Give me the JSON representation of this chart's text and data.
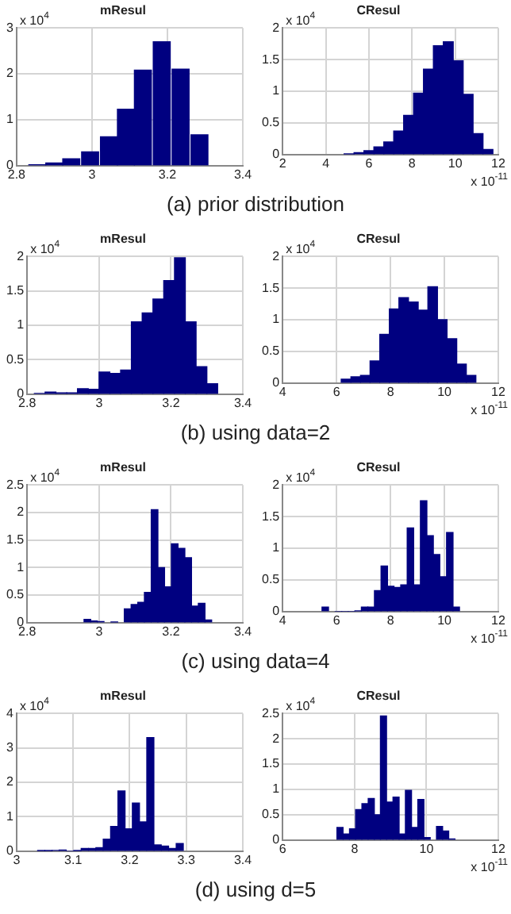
{
  "chart_data": [
    {
      "type": "histogram",
      "title": "mResul",
      "color": "#000080",
      "grid": true,
      "xlim": [
        2.8,
        3.4
      ],
      "xticks": [
        2.8,
        3,
        3.2,
        3.4
      ],
      "ylim": [
        0,
        3
      ],
      "yticks": [
        0,
        1,
        2,
        3
      ],
      "bins": [
        2.83,
        2.88,
        2.92,
        2.97,
        3.02,
        3.07,
        3.11,
        3.16,
        3.21,
        3.26,
        3.31
      ],
      "values": [
        0.02,
        0.06,
        0.15,
        0.3,
        0.63,
        1.23,
        2.08,
        2.7,
        2.1,
        0.67
      ],
      "annotations": [
        "x 10$^{4}$",
        "(a)  prior  distribution"
      ]
    },
    {
      "type": "histogram",
      "title": "CResul",
      "color": "#000080",
      "grid": true,
      "xlim": [
        2,
        12
      ],
      "xticks": [
        2,
        4,
        6,
        8,
        10,
        12
      ],
      "ylim": [
        0,
        2
      ],
      "yticks": [
        0,
        0.5,
        1,
        1.5,
        2
      ],
      "bins": [
        4.85,
        5.31,
        5.77,
        6.23,
        6.69,
        7.15,
        7.61,
        8.07,
        8.53,
        8.99,
        9.45,
        9.91,
        10.37,
        10.83,
        11.29,
        11.75
      ],
      "values": [
        0.01,
        0.03,
        0.06,
        0.12,
        0.2,
        0.37,
        0.62,
        0.97,
        1.35,
        1.72,
        1.78,
        1.48,
        0.95,
        0.33,
        0.08
      ],
      "annotations": [
        "x 10$^{4}$",
        "x 10$^{-11}$"
      ]
    },
    {
      "type": "histogram",
      "title": "mResul",
      "color": "#000080",
      "grid": true,
      "xlim": [
        2.8,
        3.4
      ],
      "xticks": [
        2.8,
        3,
        3.2,
        3.4
      ],
      "ylim": [
        0,
        2
      ],
      "yticks": [
        0,
        0.5,
        1,
        1.5,
        2
      ],
      "bins": [
        2.82,
        2.85,
        2.88,
        2.91,
        2.94,
        2.97,
        3.0,
        3.03,
        3.06,
        3.09,
        3.12,
        3.15,
        3.18,
        3.21,
        3.24,
        3.27,
        3.3,
        3.33
      ],
      "values": [
        0.01,
        0.03,
        0.02,
        0.02,
        0.08,
        0.07,
        0.32,
        0.3,
        0.35,
        1.05,
        1.18,
        1.38,
        1.65,
        1.98,
        1.05,
        0.4,
        0.15
      ],
      "annotations": [
        "x 10$^{4}$",
        "(b)  using  data=2"
      ]
    },
    {
      "type": "histogram",
      "title": "CResul",
      "color": "#000080",
      "grid": true,
      "xlim": [
        4,
        12
      ],
      "xticks": [
        4,
        6,
        8,
        10,
        12
      ],
      "ylim": [
        0,
        2
      ],
      "yticks": [
        0,
        0.5,
        1,
        1.5,
        2
      ],
      "bins": [
        6.17,
        6.53,
        6.89,
        7.24,
        7.6,
        7.96,
        8.31,
        8.67,
        9.03,
        9.39,
        9.74,
        10.1,
        10.46,
        10.81,
        11.17
      ],
      "values": [
        0.06,
        0.1,
        0.12,
        0.35,
        0.77,
        1.17,
        1.35,
        1.28,
        1.15,
        1.52,
        1.0,
        0.7,
        0.3,
        0.12
      ],
      "annotations": [
        "x 10$^{4}$",
        "x 10$^{-11}$"
      ]
    },
    {
      "type": "histogram",
      "title": "mResul",
      "color": "#000080",
      "grid": true,
      "xlim": [
        2.8,
        3.4
      ],
      "xticks": [
        2.8,
        3,
        3.2,
        3.4
      ],
      "ylim": [
        0,
        2.5
      ],
      "yticks": [
        0,
        0.5,
        1,
        1.5,
        2,
        2.5
      ],
      "bins": [
        2.958,
        2.977,
        2.995,
        3.014,
        3.033,
        3.052,
        3.07,
        3.089,
        3.108,
        3.126,
        3.145,
        3.164,
        3.182,
        3.201,
        3.22,
        3.239,
        3.257,
        3.276,
        3.295,
        3.313
      ],
      "values": [
        0.06,
        0.03,
        0.02,
        null,
        0.01,
        null,
        0.25,
        0.33,
        0.37,
        0.55,
        2.05,
        1.0,
        0.65,
        1.43,
        1.35,
        1.18,
        0.3,
        0.35,
        0.05
      ],
      "annotations": [
        "x 10$^{4}$",
        "(c)  using  data=4"
      ]
    },
    {
      "type": "histogram",
      "title": "CResul",
      "color": "#000080",
      "grid": true,
      "xlim": [
        4,
        12
      ],
      "xticks": [
        4,
        6,
        8,
        10,
        12
      ],
      "ylim": [
        0,
        2
      ],
      "yticks": [
        0,
        0.5,
        1,
        1.5,
        2
      ],
      "bins": [
        5.46,
        5.7,
        5.95,
        6.19,
        6.43,
        6.68,
        6.92,
        7.16,
        7.4,
        7.65,
        7.89,
        8.13,
        8.38,
        8.62,
        8.86,
        9.11,
        9.35,
        9.59,
        9.83,
        10.08,
        10.32,
        10.56
      ],
      "values": [
        0.07,
        null,
        0,
        0,
        0,
        0.01,
        0.07,
        0.07,
        0.33,
        0.72,
        0.4,
        0.38,
        0.42,
        1.32,
        0.42,
        1.75,
        1.2,
        0.9,
        0.55,
        1.25,
        0.07
      ],
      "annotations": [
        "x 10$^{4}$",
        "x 10$^{-11}$"
      ]
    },
    {
      "type": "histogram",
      "title": "mResul",
      "color": "#000080",
      "grid": true,
      "xlim": [
        3,
        3.4
      ],
      "xticks": [
        3,
        3.1,
        3.2,
        3.3,
        3.4
      ],
      "ylim": [
        0,
        4
      ],
      "yticks": [
        0,
        1,
        2,
        3,
        4
      ],
      "bins": [
        3.037,
        3.05,
        3.063,
        3.075,
        3.088,
        3.101,
        3.114,
        3.127,
        3.14,
        3.153,
        3.166,
        3.179,
        3.192,
        3.205,
        3.217,
        3.23,
        3.243,
        3.256,
        3.269,
        3.282,
        3.295
      ],
      "values": [
        0.01,
        0.01,
        0.02,
        0.03,
        0,
        0.01,
        0.08,
        0.08,
        0.1,
        0.35,
        0.72,
        1.75,
        0.65,
        1.4,
        0.85,
        3.3,
        0.18,
        0.15,
        0.08,
        0.22
      ],
      "annotations": [
        "x 10$^{4}$",
        "(d)  using  d=5"
      ]
    },
    {
      "type": "histogram",
      "title": "CResul",
      "color": "#000080",
      "grid": true,
      "xlim": [
        6,
        12
      ],
      "xticks": [
        6,
        8,
        10,
        12
      ],
      "ylim": [
        0,
        2.5
      ],
      "yticks": [
        0,
        0.5,
        1,
        1.5,
        2,
        2.5
      ],
      "bins": [
        7.51,
        7.68,
        7.86,
        8.03,
        8.2,
        8.38,
        8.55,
        8.72,
        8.89,
        9.07,
        9.24,
        9.41,
        9.59,
        9.76,
        9.93,
        10.11,
        10.28,
        10.45,
        10.62,
        10.8
      ],
      "values": [
        0.25,
        0.12,
        0.22,
        0.6,
        0.72,
        0.82,
        0.5,
        2.45,
        0.75,
        0.85,
        0.12,
        0.98,
        0.25,
        0.8,
        0.05,
        null,
        0.27,
        0.18,
        0.02
      ],
      "annotations": [
        "x 10$^{4}$",
        "x 10$^{-11}$"
      ]
    }
  ]
}
